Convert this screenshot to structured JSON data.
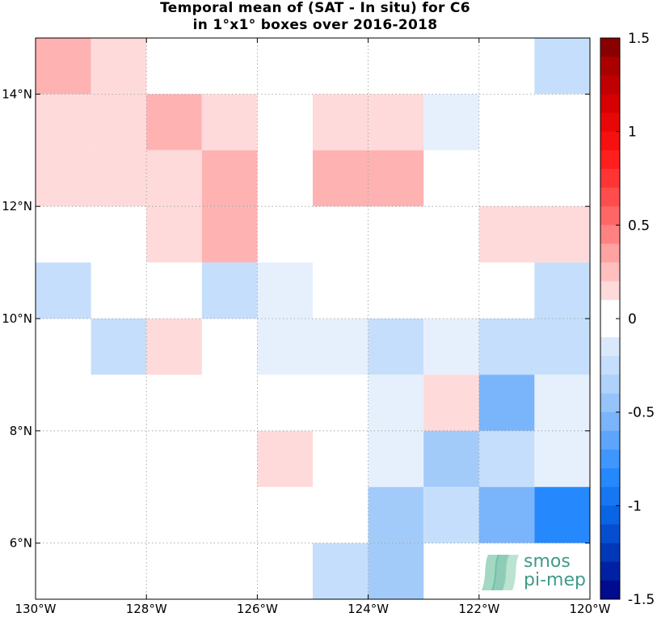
{
  "title": "Temporal mean of (SAT - In situ) for C6",
  "subtitle": "in 1°x1° boxes over 2016-2018",
  "chart_data": {
    "type": "heatmap",
    "x_range": [
      -130,
      -120
    ],
    "y_range": [
      5,
      15
    ],
    "x_ticks": [
      -130,
      -128,
      -126,
      -124,
      -122,
      -120
    ],
    "x_tick_labels": [
      "130°W",
      "128°W",
      "126°W",
      "124°W",
      "122°W",
      "120°W"
    ],
    "y_ticks": [
      6,
      8,
      10,
      12,
      14
    ],
    "y_tick_labels": [
      "6°N",
      "8°N",
      "10°N",
      "12°N",
      "14°N"
    ],
    "grid": true,
    "colorbar": {
      "range": [
        -1.5,
        1.5
      ],
      "ticks": [
        1.5,
        1,
        0.5,
        0,
        -0.5,
        -1,
        -1.5
      ],
      "tick_labels": [
        "1.5",
        "1",
        "0.5",
        "0",
        "-0.5",
        "-1",
        "-1.5"
      ]
    },
    "cells": [
      {
        "lon": -130,
        "lat": 14,
        "value": 0.3
      },
      {
        "lon": -129,
        "lat": 14,
        "value": 0.15
      },
      {
        "lon": -121,
        "lat": 14,
        "value": -0.25
      },
      {
        "lon": -130,
        "lat": 13,
        "value": 0.15
      },
      {
        "lon": -129,
        "lat": 13,
        "value": 0.15
      },
      {
        "lon": -128,
        "lat": 13,
        "value": 0.3
      },
      {
        "lon": -127,
        "lat": 13,
        "value": 0.15
      },
      {
        "lon": -125,
        "lat": 13,
        "value": 0.15
      },
      {
        "lon": -124,
        "lat": 13,
        "value": 0.15
      },
      {
        "lon": -123,
        "lat": 13,
        "value": -0.1
      },
      {
        "lon": -130,
        "lat": 12,
        "value": 0.15
      },
      {
        "lon": -129,
        "lat": 12,
        "value": 0.15
      },
      {
        "lon": -128,
        "lat": 12,
        "value": 0.15
      },
      {
        "lon": -127,
        "lat": 12,
        "value": 0.3
      },
      {
        "lon": -125,
        "lat": 12,
        "value": 0.3
      },
      {
        "lon": -124,
        "lat": 12,
        "value": 0.3
      },
      {
        "lon": -128,
        "lat": 11,
        "value": 0.15
      },
      {
        "lon": -127,
        "lat": 11,
        "value": 0.3
      },
      {
        "lon": -122,
        "lat": 11,
        "value": 0.15
      },
      {
        "lon": -121,
        "lat": 11,
        "value": 0.15
      },
      {
        "lon": -130,
        "lat": 10,
        "value": -0.25
      },
      {
        "lon": -127,
        "lat": 10,
        "value": -0.25
      },
      {
        "lon": -126,
        "lat": 10,
        "value": -0.1
      },
      {
        "lon": -121,
        "lat": 10,
        "value": -0.25
      },
      {
        "lon": -129,
        "lat": 9,
        "value": -0.25
      },
      {
        "lon": -128,
        "lat": 9,
        "value": 0.15
      },
      {
        "lon": -126,
        "lat": 9,
        "value": -0.1
      },
      {
        "lon": -125,
        "lat": 9,
        "value": -0.1
      },
      {
        "lon": -124,
        "lat": 9,
        "value": -0.25
      },
      {
        "lon": -123,
        "lat": 9,
        "value": -0.1
      },
      {
        "lon": -122,
        "lat": 9,
        "value": -0.25
      },
      {
        "lon": -121,
        "lat": 9,
        "value": -0.25
      },
      {
        "lon": -124,
        "lat": 8,
        "value": -0.1
      },
      {
        "lon": -123,
        "lat": 8,
        "value": 0.15
      },
      {
        "lon": -122,
        "lat": 8,
        "value": -0.55
      },
      {
        "lon": -121,
        "lat": 8,
        "value": -0.1
      },
      {
        "lon": -126,
        "lat": 7,
        "value": 0.15
      },
      {
        "lon": -124,
        "lat": 7,
        "value": -0.1
      },
      {
        "lon": -123,
        "lat": 7,
        "value": -0.4
      },
      {
        "lon": -122,
        "lat": 7,
        "value": -0.25
      },
      {
        "lon": -121,
        "lat": 7,
        "value": -0.1
      },
      {
        "lon": -124,
        "lat": 6,
        "value": -0.4
      },
      {
        "lon": -123,
        "lat": 6,
        "value": -0.25
      },
      {
        "lon": -122,
        "lat": 6,
        "value": -0.55
      },
      {
        "lon": -121,
        "lat": 6,
        "value": -0.85
      },
      {
        "lon": -125,
        "lat": 5,
        "value": -0.25
      },
      {
        "lon": -124,
        "lat": 5,
        "value": -0.4
      }
    ]
  },
  "logo": {
    "line1": "smos",
    "line2": "pi-mep"
  }
}
